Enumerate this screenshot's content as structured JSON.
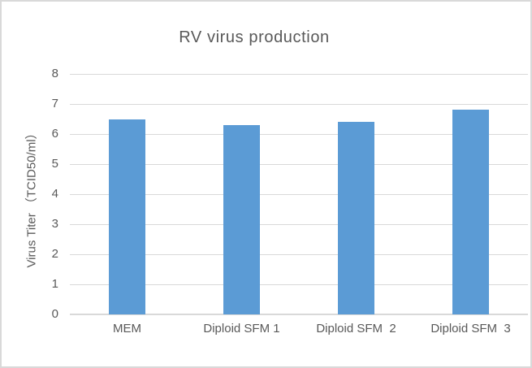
{
  "chart_data": {
    "type": "bar",
    "title": "RV virus production",
    "categories": [
      "MEM",
      "Diploid SFM 1",
      "Diploid SFM  2",
      "Diploid SFM  3"
    ],
    "values": [
      6.5,
      6.3,
      6.4,
      6.8
    ],
    "xlabel": "",
    "ylabel": "Virus Titer （TCID50/ml）",
    "ylim": [
      0,
      8
    ],
    "ytick_step": 1,
    "yticks": [
      "0",
      "1",
      "2",
      "3",
      "4",
      "5",
      "6",
      "7",
      "8"
    ],
    "grid": true,
    "legend": "none",
    "colors": {
      "bar_fill": "#5B9BD5",
      "gridline": "#D9D9D9",
      "axis_line": "#D9D9D9",
      "text": "#595959",
      "frame_border": "#D9D9D9",
      "background": "#FFFFFF"
    }
  }
}
